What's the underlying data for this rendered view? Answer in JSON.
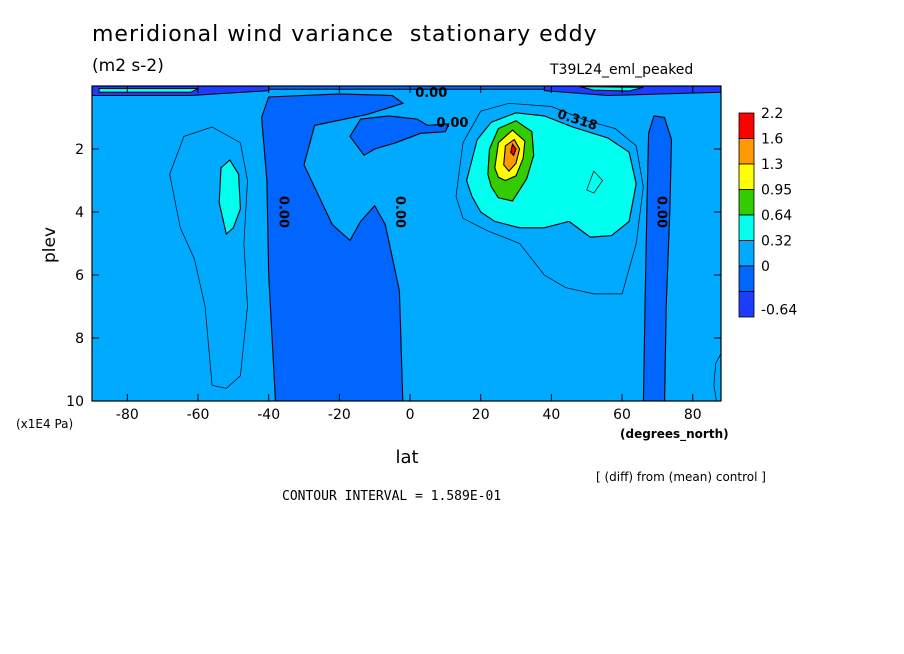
{
  "title": "meridional wind variance  stationary eddy",
  "units": "(m2 s-2)",
  "run_label": "T39L24_eml_peaked",
  "footer_note": "[ (diff) from (mean) control ]",
  "contour_interval": "CONTOUR INTERVAL = 1.589E-01",
  "chart_data": {
    "type": "heatmap",
    "xlabel": "lat",
    "x_units": "(degrees_north)",
    "ylabel": "plev",
    "y_units": "(x1E4 Pa)",
    "xlim": [
      -90,
      88
    ],
    "ylim": [
      10,
      0
    ],
    "x_ticks": [
      -80,
      -60,
      -40,
      -20,
      0,
      20,
      40,
      60,
      80
    ],
    "y_ticks": [
      2,
      4,
      6,
      8,
      10
    ],
    "colorbar": {
      "labels": [
        "2.2",
        "1.6",
        "1.3",
        "0.95",
        "0.64",
        "0.32",
        "0",
        "-0.64"
      ],
      "colors": [
        "#ff0000",
        "#ff9900",
        "#ffff00",
        "#33cc00",
        "#00ffee",
        "#00aaff",
        "#0066ff",
        "#1e3cff"
      ]
    },
    "contour_labels": [
      {
        "text": "0.00",
        "lat": 6,
        "plev": 0.35
      },
      {
        "text": "0.00",
        "lat": 12,
        "plev": 1.3
      },
      {
        "text": "0.318",
        "lat": 47,
        "plev": 1.2
      },
      {
        "text": "0.00",
        "lat": -37,
        "plev": 4.0
      },
      {
        "text": "0.00",
        "lat": -4,
        "plev": 4.0
      },
      {
        "text": "0.00",
        "lat": 70,
        "plev": 4.0
      }
    ],
    "features": [
      {
        "name": "positive-maximum",
        "lat": 29,
        "plev": 2.1,
        "value": 2.2
      },
      {
        "name": "negative-band-sh",
        "lat": -25,
        "plev": 5
      },
      {
        "name": "negative-band-nh",
        "lat": 75,
        "plev": 6
      }
    ]
  }
}
